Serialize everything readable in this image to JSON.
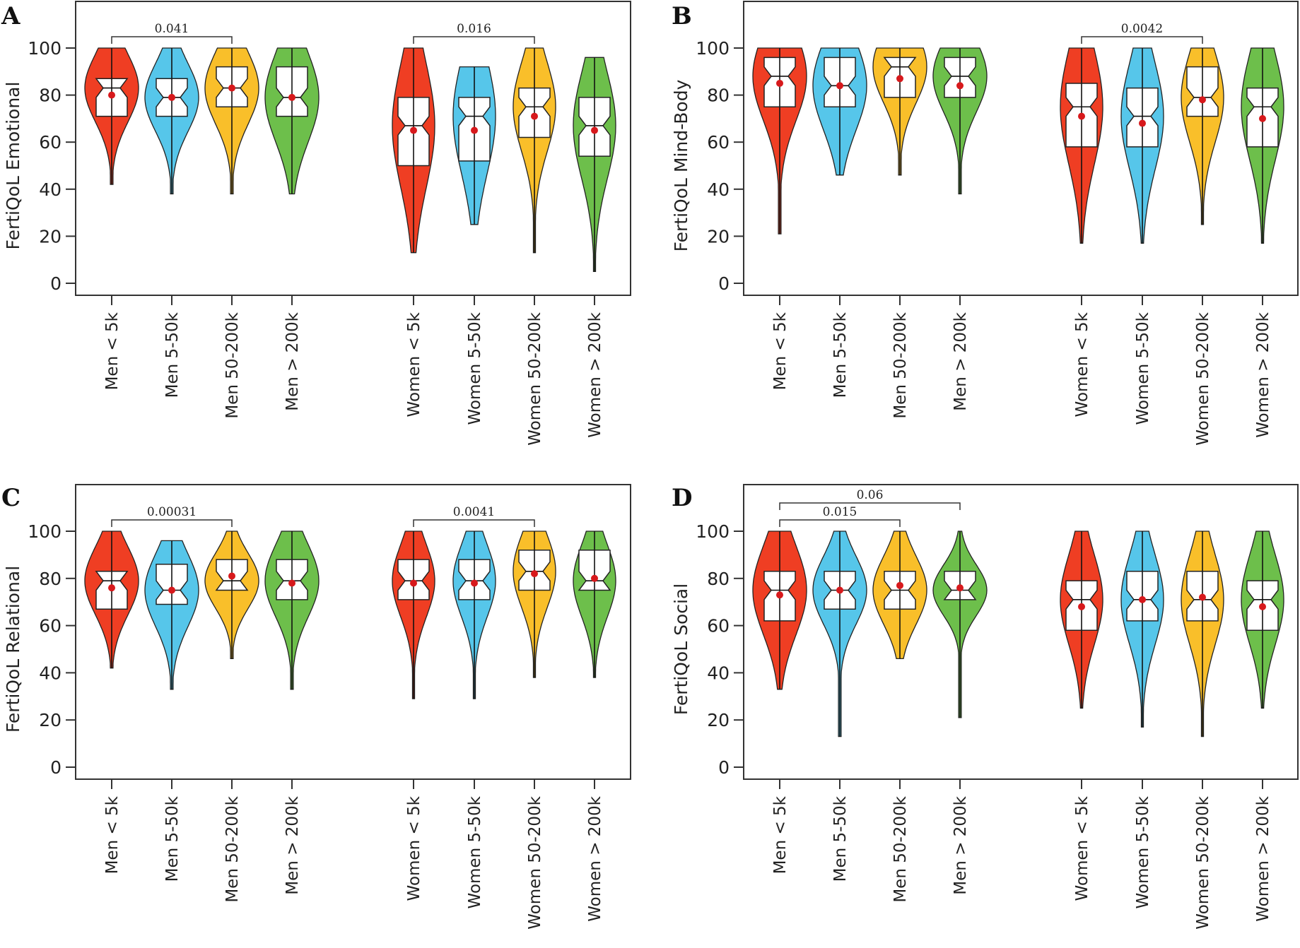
{
  "figure": {
    "colors": {
      "lt5k": "#ef3e23",
      "5-50k": "#56c6ea",
      "50-200k": "#f9bf2a",
      "gt200k": "#6dbf4b",
      "mean": "#d7191c"
    }
  },
  "chart_data": [
    {
      "panel": "A",
      "type": "violin",
      "ylabel": "FertiQoL Emotional",
      "ylim": [
        0,
        100
      ],
      "yticks": [
        "0",
        "20",
        "40",
        "60",
        "80",
        "100"
      ],
      "categories": [
        "Men < 5k",
        "Men 5-50k",
        "Men 50-200k",
        "Men > 200k",
        "Women < 5k",
        "Women 5-50k",
        "Women 50-200k",
        "Women > 200k"
      ],
      "series": [
        {
          "name": "Men < 5k",
          "color_key": "lt5k",
          "min": 42,
          "max": 100,
          "q1": 71,
          "median": 83,
          "q3": 87,
          "mean": 80
        },
        {
          "name": "Men 5-50k",
          "color_key": "5-50k",
          "min": 38,
          "max": 100,
          "q1": 71,
          "median": 79,
          "q3": 87,
          "mean": 79
        },
        {
          "name": "Men 50-200k",
          "color_key": "50-200k",
          "min": 38,
          "max": 100,
          "q1": 75,
          "median": 83,
          "q3": 92,
          "mean": 83
        },
        {
          "name": "Men > 200k",
          "color_key": "gt200k",
          "min": 38,
          "max": 100,
          "q1": 71,
          "median": 79,
          "q3": 92,
          "mean": 79
        },
        {
          "name": "Women < 5k",
          "color_key": "lt5k",
          "min": 13,
          "max": 100,
          "q1": 50,
          "median": 67,
          "q3": 79,
          "mean": 65
        },
        {
          "name": "Women 5-50k",
          "color_key": "5-50k",
          "min": 25,
          "max": 92,
          "q1": 52,
          "median": 71,
          "q3": 79,
          "mean": 65
        },
        {
          "name": "Women 50-200k",
          "color_key": "50-200k",
          "min": 13,
          "max": 100,
          "q1": 62,
          "median": 75,
          "q3": 83,
          "mean": 71
        },
        {
          "name": "Women > 200k",
          "color_key": "gt200k",
          "min": 5,
          "max": 96,
          "q1": 54,
          "median": 67,
          "q3": 79,
          "mean": 65
        }
      ],
      "annotations": [
        {
          "from": 0,
          "to": 2,
          "label": "0.041",
          "level": 1
        },
        {
          "from": 4,
          "to": 6,
          "label": "0.016",
          "level": 1
        }
      ]
    },
    {
      "panel": "B",
      "type": "violin",
      "ylabel": "FertiQoL Mind-Body",
      "ylim": [
        0,
        100
      ],
      "yticks": [
        "0",
        "20",
        "40",
        "60",
        "80",
        "100"
      ],
      "categories": [
        "Men < 5k",
        "Men 5-50k",
        "Men 50-200k",
        "Men > 200k",
        "Women < 5k",
        "Women 5-50k",
        "Women 50-200k",
        "Women > 200k"
      ],
      "series": [
        {
          "name": "Men < 5k",
          "color_key": "lt5k",
          "min": 21,
          "max": 100,
          "q1": 75,
          "median": 88,
          "q3": 96,
          "mean": 85
        },
        {
          "name": "Men 5-50k",
          "color_key": "5-50k",
          "min": 46,
          "max": 100,
          "q1": 75,
          "median": 84,
          "q3": 96,
          "mean": 84
        },
        {
          "name": "Men 50-200k",
          "color_key": "50-200k",
          "min": 46,
          "max": 100,
          "q1": 79,
          "median": 92,
          "q3": 96,
          "mean": 87
        },
        {
          "name": "Men > 200k",
          "color_key": "gt200k",
          "min": 38,
          "max": 100,
          "q1": 79,
          "median": 88,
          "q3": 96,
          "mean": 84
        },
        {
          "name": "Women < 5k",
          "color_key": "lt5k",
          "min": 17,
          "max": 100,
          "q1": 58,
          "median": 75,
          "q3": 85,
          "mean": 71
        },
        {
          "name": "Women 5-50k",
          "color_key": "5-50k",
          "min": 17,
          "max": 100,
          "q1": 58,
          "median": 71,
          "q3": 83,
          "mean": 68
        },
        {
          "name": "Women 50-200k",
          "color_key": "50-200k",
          "min": 25,
          "max": 100,
          "q1": 71,
          "median": 79,
          "q3": 92,
          "mean": 78
        },
        {
          "name": "Women > 200k",
          "color_key": "gt200k",
          "min": 17,
          "max": 100,
          "q1": 58,
          "median": 75,
          "q3": 83,
          "mean": 70
        }
      ],
      "annotations": [
        {
          "from": 4,
          "to": 6,
          "label": "0.0042",
          "level": 1
        }
      ]
    },
    {
      "panel": "C",
      "type": "violin",
      "ylabel": "FertiQoL Relational",
      "ylim": [
        0,
        100
      ],
      "yticks": [
        "0",
        "20",
        "40",
        "60",
        "80",
        "100"
      ],
      "categories": [
        "Men < 5k",
        "Men 5-50k",
        "Men 50-200k",
        "Men > 200k",
        "Women < 5k",
        "Women 5-50k",
        "Women 50-200k",
        "Women > 200k"
      ],
      "series": [
        {
          "name": "Men < 5k",
          "color_key": "lt5k",
          "min": 42,
          "max": 100,
          "q1": 67,
          "median": 79,
          "q3": 83,
          "mean": 76
        },
        {
          "name": "Men 5-50k",
          "color_key": "5-50k",
          "min": 33,
          "max": 96,
          "q1": 69,
          "median": 75,
          "q3": 86,
          "mean": 75
        },
        {
          "name": "Men 50-200k",
          "color_key": "50-200k",
          "min": 46,
          "max": 100,
          "q1": 75,
          "median": 79,
          "q3": 88,
          "mean": 81
        },
        {
          "name": "Men > 200k",
          "color_key": "gt200k",
          "min": 33,
          "max": 100,
          "q1": 71,
          "median": 79,
          "q3": 88,
          "mean": 78
        },
        {
          "name": "Women < 5k",
          "color_key": "lt5k",
          "min": 29,
          "max": 100,
          "q1": 71,
          "median": 79,
          "q3": 88,
          "mean": 78
        },
        {
          "name": "Women 5-50k",
          "color_key": "5-50k",
          "min": 29,
          "max": 100,
          "q1": 71,
          "median": 79,
          "q3": 88,
          "mean": 78
        },
        {
          "name": "Women 50-200k",
          "color_key": "50-200k",
          "min": 38,
          "max": 100,
          "q1": 75,
          "median": 83,
          "q3": 92,
          "mean": 82
        },
        {
          "name": "Women > 200k",
          "color_key": "gt200k",
          "min": 38,
          "max": 100,
          "q1": 75,
          "median": 79,
          "q3": 92,
          "mean": 80
        }
      ],
      "annotations": [
        {
          "from": 0,
          "to": 2,
          "label": "0.00031",
          "level": 1
        },
        {
          "from": 4,
          "to": 6,
          "label": "0.0041",
          "level": 1
        }
      ]
    },
    {
      "panel": "D",
      "type": "violin",
      "ylabel": "FertiQoL Social",
      "ylim": [
        0,
        100
      ],
      "yticks": [
        "0",
        "20",
        "40",
        "60",
        "80",
        "100"
      ],
      "categories": [
        "Men < 5k",
        "Men 5-50k",
        "Men 50-200k",
        "Men > 200k",
        "Women < 5k",
        "Women 5-50k",
        "Women 50-200k",
        "Women > 200k"
      ],
      "series": [
        {
          "name": "Men < 5k",
          "color_key": "lt5k",
          "min": 33,
          "max": 100,
          "q1": 62,
          "median": 75,
          "q3": 83,
          "mean": 73
        },
        {
          "name": "Men 5-50k",
          "color_key": "5-50k",
          "min": 13,
          "max": 100,
          "q1": 67,
          "median": 75,
          "q3": 83,
          "mean": 75
        },
        {
          "name": "Men 50-200k",
          "color_key": "50-200k",
          "min": 46,
          "max": 100,
          "q1": 67,
          "median": 75,
          "q3": 83,
          "mean": 77
        },
        {
          "name": "Men > 200k",
          "color_key": "gt200k",
          "min": 21,
          "max": 100,
          "q1": 71,
          "median": 75,
          "q3": 83,
          "mean": 76
        },
        {
          "name": "Women < 5k",
          "color_key": "lt5k",
          "min": 25,
          "max": 100,
          "q1": 58,
          "median": 71,
          "q3": 79,
          "mean": 68
        },
        {
          "name": "Women 5-50k",
          "color_key": "5-50k",
          "min": 17,
          "max": 100,
          "q1": 62,
          "median": 71,
          "q3": 83,
          "mean": 71
        },
        {
          "name": "Women 50-200k",
          "color_key": "50-200k",
          "min": 13,
          "max": 100,
          "q1": 62,
          "median": 71,
          "q3": 83,
          "mean": 72
        },
        {
          "name": "Women > 200k",
          "color_key": "gt200k",
          "min": 25,
          "max": 100,
          "q1": 58,
          "median": 71,
          "q3": 79,
          "mean": 68
        }
      ],
      "annotations": [
        {
          "from": 0,
          "to": 2,
          "label": "0.015",
          "level": 1
        },
        {
          "from": 0,
          "to": 3,
          "label": "0.06",
          "level": 2
        }
      ]
    }
  ]
}
